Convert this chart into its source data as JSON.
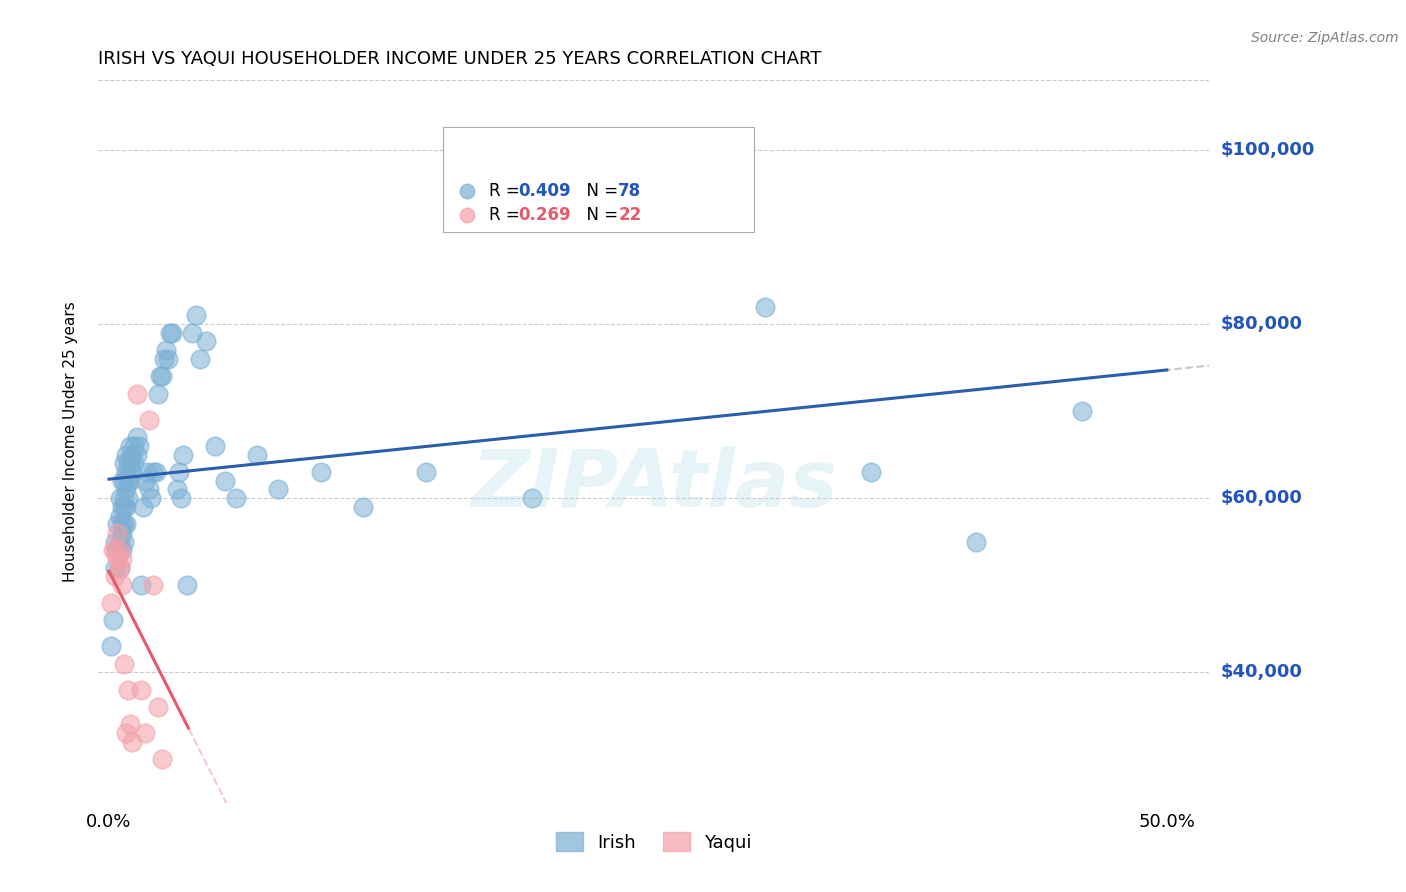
{
  "title": "IRISH VS YAQUI HOUSEHOLDER INCOME UNDER 25 YEARS CORRELATION CHART",
  "source": "Source: ZipAtlas.com",
  "ylabel": "Householder Income Under 25 years",
  "ytick_labels": [
    "$40,000",
    "$60,000",
    "$80,000",
    "$100,000"
  ],
  "ytick_values": [
    40000,
    60000,
    80000,
    100000
  ],
  "ylim": [
    25000,
    108000
  ],
  "xlim": [
    -0.005,
    0.52
  ],
  "irish_color": "#7BAFD4",
  "yaqui_color": "#F4A0A8",
  "trend_irish_color": "#2B5EAD",
  "trend_yaqui_color": "#E8596A",
  "watermark": "ZIPAtlas",
  "legend_irish_r": "0.409",
  "legend_irish_n": "78",
  "legend_yaqui_r": "0.269",
  "legend_yaqui_n": "22",
  "irish_x": [
    0.001,
    0.002,
    0.003,
    0.003,
    0.004,
    0.004,
    0.005,
    0.005,
    0.005,
    0.005,
    0.006,
    0.006,
    0.006,
    0.006,
    0.006,
    0.007,
    0.007,
    0.007,
    0.007,
    0.007,
    0.007,
    0.008,
    0.008,
    0.008,
    0.008,
    0.008,
    0.009,
    0.009,
    0.009,
    0.01,
    0.01,
    0.01,
    0.011,
    0.011,
    0.012,
    0.012,
    0.013,
    0.013,
    0.014,
    0.015,
    0.016,
    0.017,
    0.018,
    0.019,
    0.02,
    0.021,
    0.022,
    0.023,
    0.024,
    0.025,
    0.026,
    0.027,
    0.028,
    0.029,
    0.03,
    0.032,
    0.033,
    0.034,
    0.035,
    0.037,
    0.039,
    0.041,
    0.043,
    0.046,
    0.05,
    0.055,
    0.06,
    0.07,
    0.08,
    0.1,
    0.12,
    0.15,
    0.2,
    0.26,
    0.31,
    0.36,
    0.41,
    0.46
  ],
  "irish_y": [
    43000,
    46000,
    55000,
    52000,
    54000,
    57000,
    52000,
    55000,
    58000,
    60000,
    54000,
    56000,
    57000,
    59000,
    62000,
    55000,
    57000,
    59000,
    60000,
    62000,
    64000,
    57000,
    59000,
    61000,
    63000,
    65000,
    60000,
    62000,
    64000,
    62000,
    64000,
    66000,
    63000,
    65000,
    64000,
    66000,
    65000,
    67000,
    66000,
    50000,
    59000,
    62000,
    63000,
    61000,
    60000,
    63000,
    63000,
    72000,
    74000,
    74000,
    76000,
    77000,
    76000,
    79000,
    79000,
    61000,
    63000,
    60000,
    65000,
    50000,
    79000,
    81000,
    76000,
    78000,
    66000,
    62000,
    60000,
    65000,
    61000,
    63000,
    59000,
    63000,
    60000,
    96000,
    82000,
    63000,
    55000,
    70000
  ],
  "yaqui_x": [
    0.001,
    0.002,
    0.003,
    0.003,
    0.004,
    0.004,
    0.005,
    0.005,
    0.006,
    0.006,
    0.007,
    0.008,
    0.009,
    0.01,
    0.011,
    0.013,
    0.015,
    0.017,
    0.019,
    0.021,
    0.023,
    0.025
  ],
  "yaqui_y": [
    48000,
    54000,
    51000,
    54000,
    53000,
    56000,
    52000,
    54000,
    50000,
    53000,
    41000,
    33000,
    38000,
    34000,
    32000,
    72000,
    38000,
    33000,
    69000,
    50000,
    36000,
    30000
  ]
}
